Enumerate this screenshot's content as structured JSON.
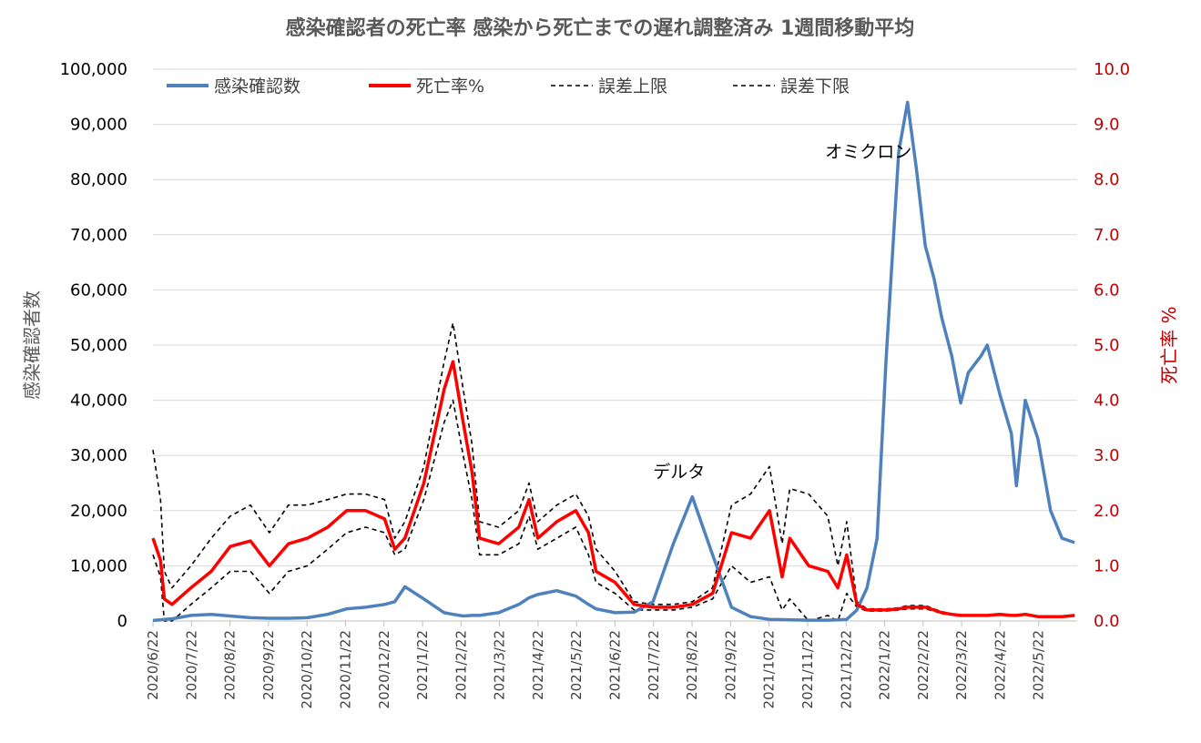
{
  "chart_data": {
    "type": "line",
    "title": "感染確認者の死亡率  感染から死亡までの遅れ調整済み  1週間移動平均",
    "ylabel": "感染確認者数",
    "y2label": "死亡率  %",
    "ylim": [
      0,
      100000
    ],
    "y2lim": [
      0,
      10
    ],
    "yticks": [
      "0",
      "10,000",
      "20,000",
      "30,000",
      "40,000",
      "50,000",
      "60,000",
      "70,000",
      "80,000",
      "90,000",
      "100,000"
    ],
    "y2ticks": [
      "0.0",
      "1.0",
      "2.0",
      "3.0",
      "4.0",
      "5.0",
      "6.0",
      "7.0",
      "8.0",
      "9.0",
      "10.0"
    ],
    "xlim": [
      "2020-06-22",
      "2022-06-22"
    ],
    "xticks": [
      "2020/6/22",
      "2020/7/22",
      "2020/8/22",
      "2020/9/22",
      "2020/10/22",
      "2020/11/22",
      "2020/12/22",
      "2021/1/22",
      "2021/2/22",
      "2021/3/22",
      "2021/4/22",
      "2021/5/22",
      "2021/6/22",
      "2021/7/22",
      "2021/8/22",
      "2021/9/22",
      "2021/10/22",
      "2021/11/22",
      "2021/12/22",
      "2022/1/22",
      "2022/2/22",
      "2022/3/22",
      "2022/4/22",
      "2022/5/22"
    ],
    "grid": true,
    "legend_position": "top",
    "x": [
      "2020-06-22",
      "2020-06-28",
      "2020-07-01",
      "2020-07-07",
      "2020-07-22",
      "2020-08-07",
      "2020-08-22",
      "2020-09-07",
      "2020-09-22",
      "2020-10-07",
      "2020-10-22",
      "2020-11-07",
      "2020-11-22",
      "2020-12-07",
      "2020-12-22",
      "2020-12-30",
      "2021-01-07",
      "2021-01-22",
      "2021-02-07",
      "2021-02-14",
      "2021-02-22",
      "2021-03-01",
      "2021-03-07",
      "2021-03-22",
      "2021-04-07",
      "2021-04-15",
      "2021-04-22",
      "2021-05-07",
      "2021-05-22",
      "2021-06-01",
      "2021-06-07",
      "2021-06-22",
      "2021-07-07",
      "2021-07-22",
      "2021-08-07",
      "2021-08-22",
      "2021-09-07",
      "2021-09-22",
      "2021-10-07",
      "2021-10-22",
      "2021-11-01",
      "2021-11-07",
      "2021-11-22",
      "2021-12-07",
      "2021-12-15",
      "2021-12-22",
      "2021-12-30",
      "2022-01-07",
      "2022-01-15",
      "2022-01-22",
      "2022-02-01",
      "2022-02-08",
      "2022-02-15",
      "2022-02-22",
      "2022-03-01",
      "2022-03-07",
      "2022-03-15",
      "2022-03-22",
      "2022-03-28",
      "2022-04-07",
      "2022-04-12",
      "2022-04-22",
      "2022-05-01",
      "2022-05-05",
      "2022-05-12",
      "2022-05-22",
      "2022-06-01",
      "2022-06-10",
      "2022-06-20"
    ],
    "series": [
      {
        "name": "感染確認数",
        "axis": "left",
        "color": "#4f81bd",
        "style": "solid",
        "values": [
          100,
          200,
          300,
          400,
          1000,
          1200,
          900,
          600,
          500,
          500,
          600,
          1200,
          2200,
          2500,
          3000,
          3500,
          6200,
          4000,
          1500,
          1200,
          900,
          1000,
          1000,
          1500,
          3000,
          4200,
          4800,
          5500,
          4500,
          3000,
          2200,
          1500,
          1600,
          3500,
          14000,
          22500,
          12000,
          2500,
          800,
          300,
          250,
          200,
          150,
          150,
          200,
          300,
          2000,
          6000,
          15000,
          47000,
          85000,
          94000,
          82000,
          68000,
          62000,
          55000,
          48000,
          39500,
          45000,
          48000,
          50000,
          41000,
          34000,
          24500,
          40000,
          33000,
          20000,
          15000,
          14200
        ]
      },
      {
        "name": "死亡率%",
        "axis": "right",
        "color": "#ff0000",
        "style": "solid",
        "values": [
          1.5,
          1.1,
          0.4,
          0.3,
          0.6,
          0.9,
          1.35,
          1.45,
          1.0,
          1.4,
          1.5,
          1.7,
          2.0,
          2.0,
          1.85,
          1.3,
          1.5,
          2.5,
          4.2,
          4.7,
          3.6,
          2.7,
          1.5,
          1.4,
          1.7,
          2.2,
          1.5,
          1.8,
          2.0,
          1.6,
          0.9,
          0.7,
          0.3,
          0.25,
          0.25,
          0.3,
          0.5,
          1.6,
          1.5,
          2.0,
          0.8,
          1.5,
          1.0,
          0.9,
          0.6,
          1.2,
          0.3,
          0.2,
          0.2,
          0.2,
          0.22,
          0.25,
          0.25,
          0.25,
          0.2,
          0.15,
          0.12,
          0.1,
          0.1,
          0.1,
          0.1,
          0.12,
          0.1,
          0.1,
          0.12,
          0.08,
          0.08,
          0.08,
          0.1
        ]
      },
      {
        "name": "誤差上限",
        "axis": "right",
        "color": "#000000",
        "style": "dashed",
        "values": [
          3.1,
          2.2,
          0.9,
          0.6,
          1.0,
          1.5,
          1.9,
          2.1,
          1.6,
          2.1,
          2.1,
          2.2,
          2.3,
          2.3,
          2.2,
          1.5,
          1.8,
          2.8,
          4.7,
          5.4,
          4.2,
          3.2,
          1.8,
          1.7,
          2.0,
          2.5,
          1.8,
          2.1,
          2.3,
          1.9,
          1.3,
          0.9,
          0.35,
          0.3,
          0.3,
          0.35,
          0.6,
          2.1,
          2.3,
          2.8,
          1.4,
          2.4,
          2.3,
          1.9,
          1.0,
          1.8,
          0.35,
          0.22,
          0.22,
          0.22,
          0.24,
          0.28,
          0.28,
          0.28,
          0.22,
          0.17,
          0.13,
          0.11,
          0.11,
          0.11,
          0.11,
          0.13,
          0.11,
          0.11,
          0.13,
          0.09,
          0.09,
          0.09,
          0.11
        ]
      },
      {
        "name": "誤差下限",
        "axis": "right",
        "color": "#000000",
        "style": "dashed",
        "values": [
          1.2,
          0.8,
          0.0,
          0.0,
          0.3,
          0.6,
          0.9,
          0.9,
          0.5,
          0.9,
          1.0,
          1.3,
          1.6,
          1.7,
          1.6,
          1.2,
          1.3,
          2.2,
          3.6,
          4.0,
          3.0,
          2.2,
          1.2,
          1.2,
          1.4,
          1.9,
          1.3,
          1.5,
          1.7,
          1.2,
          0.7,
          0.5,
          0.2,
          0.2,
          0.2,
          0.25,
          0.4,
          1.0,
          0.7,
          0.8,
          0.2,
          0.4,
          0.0,
          0.1,
          0.0,
          0.5,
          0.25,
          0.18,
          0.18,
          0.18,
          0.2,
          0.22,
          0.22,
          0.22,
          0.18,
          0.13,
          0.11,
          0.09,
          0.09,
          0.09,
          0.09,
          0.11,
          0.09,
          0.09,
          0.11,
          0.07,
          0.07,
          0.07,
          0.09
        ]
      }
    ],
    "annotations": [
      {
        "text": "オミクロン",
        "x": "2021-12-05",
        "y": 84000
      },
      {
        "text": "デルタ",
        "x": "2021-07-22",
        "y": 26000
      }
    ]
  }
}
